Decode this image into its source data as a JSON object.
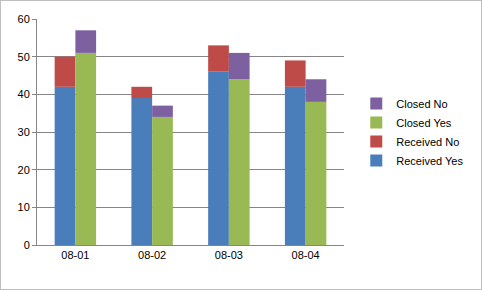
{
  "chart_data": {
    "type": "bar",
    "stacked": true,
    "grid": true,
    "legend": "right",
    "categories": [
      "08-01",
      "08-02",
      "08-03",
      "08-04"
    ],
    "ylim": [
      0,
      60
    ],
    "yticks": [
      0,
      10,
      20,
      30,
      40,
      50,
      60
    ],
    "stacks": [
      {
        "series": [
          {
            "name": "Received Yes",
            "color": "#4a7ebb",
            "values": [
              42,
              39,
              46,
              42
            ]
          },
          {
            "name": "Received No",
            "color": "#be4b48",
            "values": [
              8,
              3,
              7,
              7
            ]
          }
        ]
      },
      {
        "series": [
          {
            "name": "Closed Yes",
            "color": "#98b954",
            "values": [
              51,
              34,
              44,
              38
            ]
          },
          {
            "name": "Closed No",
            "color": "#7d60a0",
            "values": [
              6,
              3,
              7,
              6
            ]
          }
        ]
      }
    ]
  }
}
